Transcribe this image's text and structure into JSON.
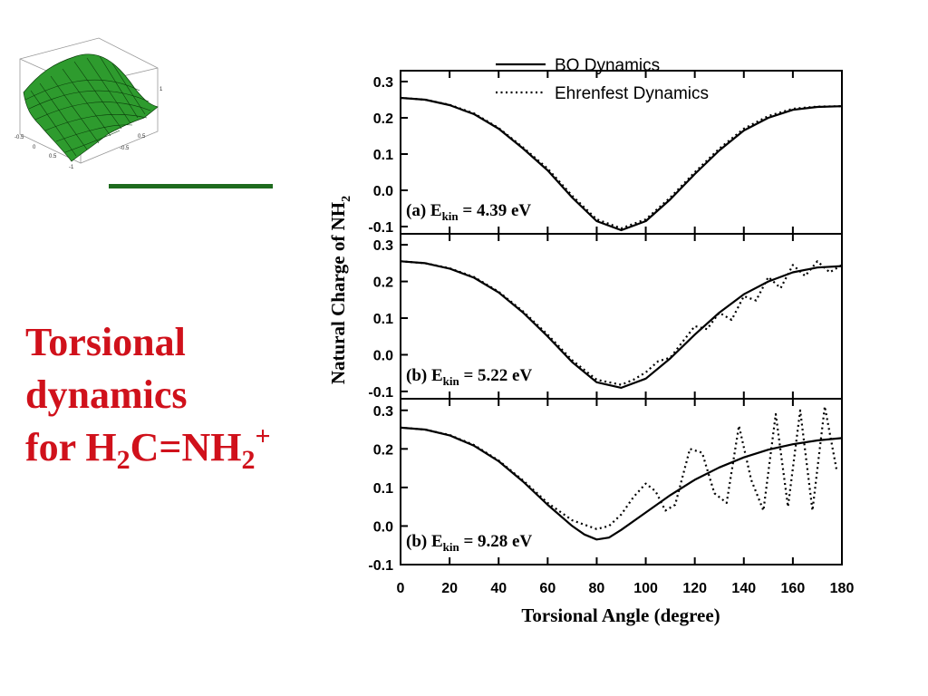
{
  "slide": {
    "title_line1": "Torsional",
    "title_line2": "dynamics",
    "title_line3_prefix": "for H",
    "title_sub1": "2",
    "title_mid": "C=NH",
    "title_sub2": "2",
    "title_sup": "+",
    "title_color": "#d0111b",
    "divider_color": "#1e6b1e",
    "logo_surface_color": "#2e9b2e",
    "logo_axis_ticks": [
      "1",
      "0.5",
      "0",
      "-0.5",
      "-1"
    ]
  },
  "chart_data": {
    "type": "line",
    "xlabel": "Torsional Angle (degree)",
    "ylabel_prefix": "Natural Charge of NH",
    "ylabel_sub": "2",
    "xlim": [
      0,
      180
    ],
    "x_ticks": [
      "0",
      "20",
      "40",
      "60",
      "80",
      "100",
      "120",
      "140",
      "160",
      "180"
    ],
    "legend": {
      "position": "top-right",
      "entries": [
        {
          "label": "BO Dynamics",
          "style": "solid"
        },
        {
          "label": "Ehrenfest Dynamics",
          "style": "dotted"
        }
      ]
    },
    "panels": [
      {
        "label_prefix": "(a) E",
        "label_sub": "kin",
        "label_suffix": " = 4.39 eV",
        "ylim": [
          -0.12,
          0.33
        ],
        "y_ticks": [
          "0.3",
          "0.2",
          "0.1",
          "0.0",
          "-0.1"
        ],
        "series": [
          {
            "name": "BO Dynamics",
            "style": "solid",
            "x": [
              0,
              10,
              20,
              30,
              40,
              50,
              60,
              70,
              80,
              90,
              100,
              110,
              120,
              130,
              140,
              150,
              160,
              170,
              180
            ],
            "y": [
              0.255,
              0.25,
              0.235,
              0.21,
              0.17,
              0.115,
              0.055,
              -0.02,
              -0.085,
              -0.11,
              -0.085,
              -0.025,
              0.045,
              0.11,
              0.165,
              0.2,
              0.222,
              0.23,
              0.232
            ]
          },
          {
            "name": "Ehrenfest Dynamics",
            "style": "dotted",
            "x": [
              0,
              10,
              20,
              30,
              40,
              50,
              60,
              70,
              80,
              90,
              100,
              110,
              120,
              130,
              140,
              150,
              160,
              170,
              180
            ],
            "y": [
              0.255,
              0.25,
              0.236,
              0.212,
              0.172,
              0.118,
              0.06,
              -0.015,
              -0.08,
              -0.105,
              -0.08,
              -0.02,
              0.05,
              0.115,
              0.17,
              0.205,
              0.225,
              0.231,
              0.232
            ]
          }
        ]
      },
      {
        "label_prefix": "(b) E",
        "label_sub": "kin",
        "label_suffix": " = 5.22 eV",
        "ylim": [
          -0.12,
          0.33
        ],
        "y_ticks": [
          "0.3",
          "0.2",
          "0.1",
          "0.0",
          "-0.1"
        ],
        "series": [
          {
            "name": "BO Dynamics",
            "style": "solid",
            "x": [
              0,
              10,
              20,
              30,
              40,
              50,
              60,
              70,
              80,
              90,
              100,
              110,
              120,
              130,
              140,
              150,
              160,
              170,
              180
            ],
            "y": [
              0.255,
              0.25,
              0.235,
              0.21,
              0.17,
              0.115,
              0.05,
              -0.02,
              -0.075,
              -0.09,
              -0.065,
              -0.01,
              0.055,
              0.115,
              0.165,
              0.2,
              0.225,
              0.238,
              0.242
            ]
          },
          {
            "name": "Ehrenfest Dynamics",
            "style": "dotted",
            "x": [
              0,
              10,
              20,
              30,
              40,
              50,
              60,
              70,
              80,
              90,
              95,
              100,
              105,
              110,
              115,
              120,
              125,
              130,
              135,
              140,
              145,
              150,
              155,
              160,
              165,
              170,
              175,
              180
            ],
            "y": [
              0.255,
              0.25,
              0.236,
              0.212,
              0.172,
              0.118,
              0.055,
              -0.015,
              -0.068,
              -0.082,
              -0.068,
              -0.048,
              -0.018,
              -0.008,
              0.035,
              0.078,
              0.07,
              0.115,
              0.095,
              0.16,
              0.148,
              0.212,
              0.182,
              0.245,
              0.215,
              0.255,
              0.225,
              0.245
            ]
          }
        ]
      },
      {
        "label_prefix": "(b) E",
        "label_sub": "kin",
        "label_suffix": " = 9.28 eV",
        "ylim": [
          -0.1,
          0.33
        ],
        "y_ticks": [
          "0.3",
          "0.2",
          "0.1",
          "0.0",
          "-0.1"
        ],
        "series": [
          {
            "name": "BO Dynamics",
            "style": "solid",
            "x": [
              0,
              10,
              20,
              30,
              40,
              50,
              60,
              70,
              75,
              80,
              85,
              90,
              100,
              110,
              120,
              130,
              140,
              150,
              160,
              170,
              180
            ],
            "y": [
              0.255,
              0.25,
              0.235,
              0.208,
              0.168,
              0.115,
              0.055,
              0.0,
              -0.022,
              -0.035,
              -0.03,
              -0.01,
              0.035,
              0.08,
              0.12,
              0.152,
              0.178,
              0.198,
              0.212,
              0.222,
              0.228
            ]
          },
          {
            "name": "Ehrenfest Dynamics",
            "style": "dotted",
            "x": [
              0,
              10,
              20,
              30,
              40,
              50,
              60,
              70,
              80,
              85,
              90,
              95,
              100,
              104,
              108,
              112,
              118,
              123,
              128,
              133,
              138,
              143,
              148,
              153,
              158,
              163,
              168,
              173,
              178
            ],
            "y": [
              0.255,
              0.25,
              0.236,
              0.21,
              0.17,
              0.118,
              0.06,
              0.015,
              -0.008,
              0.0,
              0.03,
              0.075,
              0.11,
              0.09,
              0.04,
              0.055,
              0.2,
              0.19,
              0.085,
              0.06,
              0.26,
              0.12,
              0.04,
              0.29,
              0.05,
              0.3,
              0.04,
              0.31,
              0.14
            ]
          }
        ]
      }
    ]
  }
}
